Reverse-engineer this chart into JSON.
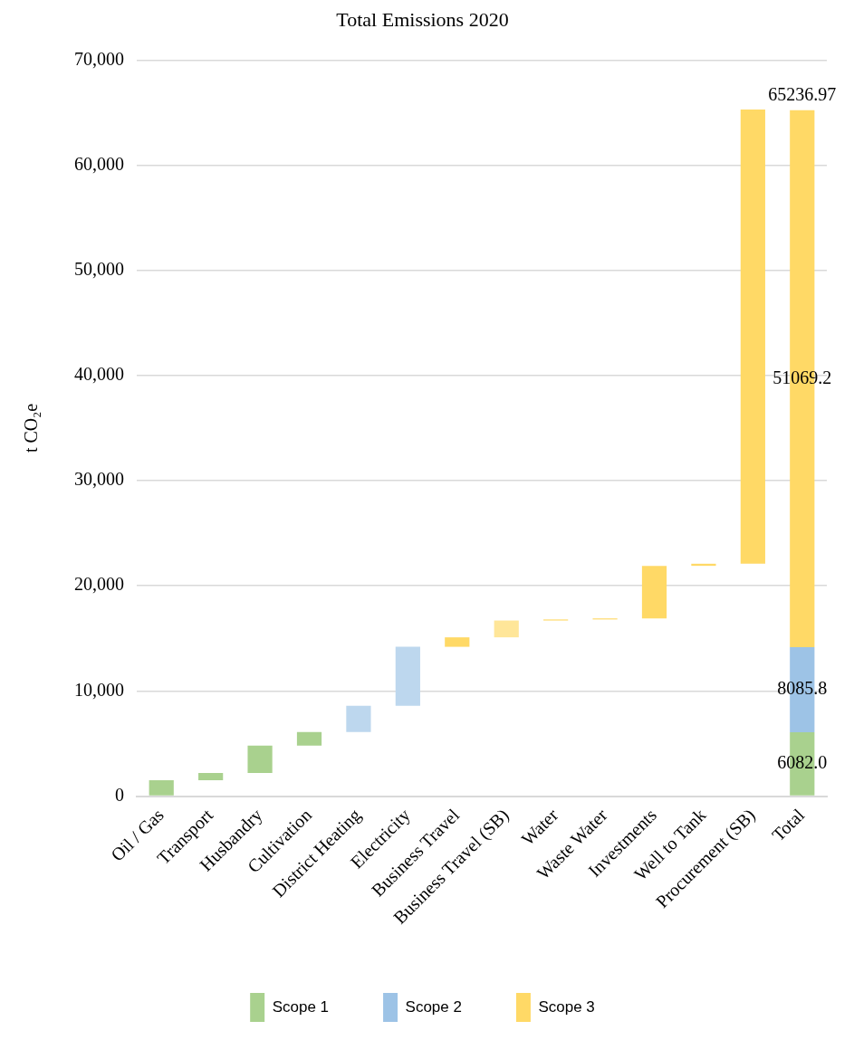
{
  "chart_data": {
    "type": "bar",
    "title": "Total Emissions 2020",
    "ylabel": "t CO₂e",
    "categories": [
      "Oil / Gas",
      "Transport",
      "Husbandry",
      "Cultivation",
      "District Heating",
      "Electricity",
      "Business Travel",
      "Business Travel (SB)",
      "Water",
      "Waste Water",
      "Investments",
      "Well to Tank",
      "Procurement (SB)",
      "Total"
    ],
    "series": [
      {
        "name": "Scope 1",
        "color": "#a9d18e",
        "values": [
          1500,
          700,
          2600,
          1300,
          null,
          null,
          null,
          null,
          null,
          null,
          null,
          null,
          null,
          6081.97
        ],
        "base": [
          0,
          1500,
          2200,
          4800,
          null,
          null,
          null,
          null,
          null,
          null,
          null,
          null,
          null,
          0
        ],
        "value_labels": [
          null,
          null,
          null,
          null,
          null,
          null,
          null,
          null,
          null,
          null,
          null,
          null,
          null,
          "6082.0"
        ]
      },
      {
        "name": "Scope 2",
        "color": "#9dc3e6",
        "colors": [
          null,
          null,
          null,
          null,
          "#bdd7ee",
          "#bdd7ee",
          null,
          null,
          null,
          null,
          null,
          null,
          null,
          "#9dc3e6"
        ],
        "values": [
          null,
          null,
          null,
          null,
          2500,
          5600,
          null,
          null,
          null,
          null,
          null,
          null,
          null,
          8085.8
        ],
        "base": [
          null,
          null,
          null,
          null,
          6100,
          8600,
          null,
          null,
          null,
          null,
          null,
          null,
          null,
          6081.97
        ],
        "value_labels": [
          null,
          null,
          null,
          null,
          null,
          null,
          null,
          null,
          null,
          null,
          null,
          null,
          null,
          "8085.8"
        ]
      },
      {
        "name": "Scope 3",
        "color": "#ffd966",
        "colors": [
          null,
          null,
          null,
          null,
          null,
          null,
          "#ffd966",
          "#ffe699",
          "#ffd966",
          "#ffd966",
          "#ffd966",
          "#ffd966",
          "#ffd966",
          "#ffd966"
        ],
        "values": [
          null,
          null,
          null,
          null,
          null,
          null,
          900,
          1600,
          100,
          100,
          5000,
          200,
          43200,
          51069.2
        ],
        "base": [
          null,
          null,
          null,
          null,
          null,
          null,
          14200,
          15100,
          16700,
          16800,
          16900,
          21900,
          22100,
          14167.77
        ],
        "value_labels": [
          null,
          null,
          null,
          null,
          null,
          null,
          null,
          null,
          null,
          null,
          null,
          null,
          null,
          "51069.2"
        ]
      }
    ],
    "totals": [
      null,
      null,
      null,
      null,
      null,
      null,
      null,
      null,
      null,
      null,
      null,
      null,
      null,
      "65236.97"
    ],
    "ylim": [
      0,
      70000
    ],
    "yticks": [
      {
        "value": 0,
        "label": "0"
      },
      {
        "value": 10000,
        "label": "10,000"
      },
      {
        "value": 20000,
        "label": "20,000"
      },
      {
        "value": 30000,
        "label": "30,000"
      },
      {
        "value": 40000,
        "label": "40,000"
      },
      {
        "value": 50000,
        "label": "50,000"
      },
      {
        "value": 60000,
        "label": "60,000"
      },
      {
        "value": 70000,
        "label": "70,000"
      }
    ],
    "grid": "y",
    "legend": "bottom"
  }
}
